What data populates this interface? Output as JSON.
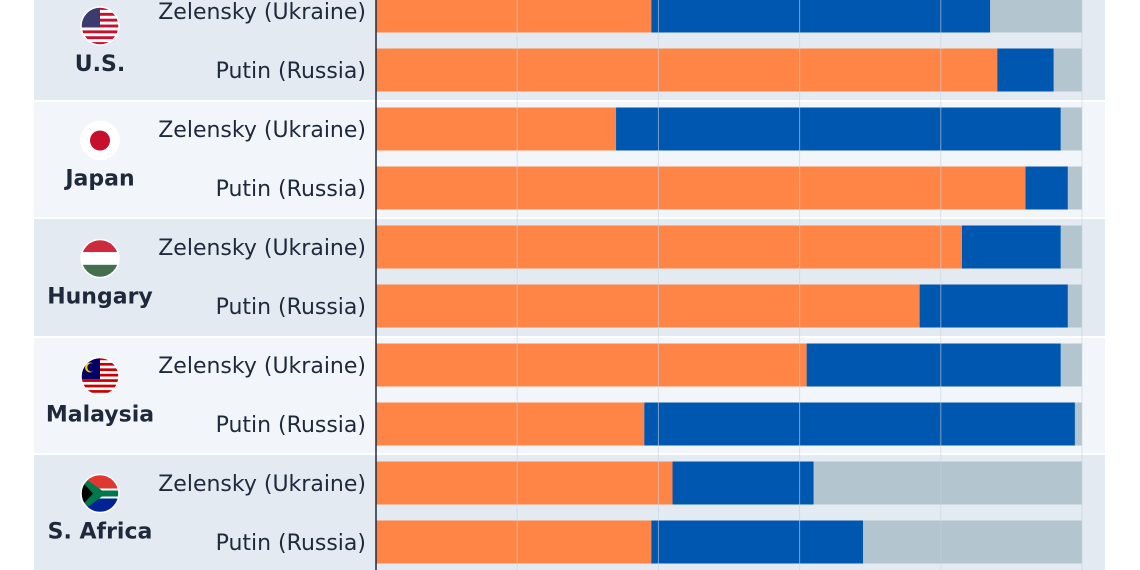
{
  "chart_data": {
    "type": "bar",
    "orientation": "horizontal",
    "stacked": true,
    "xlim": [
      0,
      100
    ],
    "grid": true,
    "gridlines": [
      20,
      40,
      60,
      80,
      100
    ],
    "series_colors": {
      "a": "#ff8547",
      "b": "#0057b0",
      "c": "#b3c5cf"
    },
    "groups": [
      {
        "country": "U.S.",
        "flag": "us-flag",
        "rows": [
          {
            "label": "Zelensky (Ukraine)",
            "values": [
              39,
              48,
              13
            ]
          },
          {
            "label": "Putin (Russia)",
            "values": [
              88,
              8,
              4
            ]
          }
        ]
      },
      {
        "country": "Japan",
        "flag": "japan-flag",
        "rows": [
          {
            "label": "Zelensky (Ukraine)",
            "values": [
              34,
              63,
              3
            ]
          },
          {
            "label": "Putin (Russia)",
            "values": [
              92,
              6,
              2
            ]
          }
        ]
      },
      {
        "country": "Hungary",
        "flag": "hungary-flag",
        "rows": [
          {
            "label": "Zelensky (Ukraine)",
            "values": [
              83,
              14,
              3
            ]
          },
          {
            "label": "Putin (Russia)",
            "values": [
              77,
              21,
              2
            ]
          }
        ]
      },
      {
        "country": "Malaysia",
        "flag": "malaysia-flag",
        "rows": [
          {
            "label": "Zelensky (Ukraine)",
            "values": [
              61,
              36,
              3
            ]
          },
          {
            "label": "Putin (Russia)",
            "values": [
              38,
              61,
              1
            ]
          }
        ]
      },
      {
        "country": "S. Africa",
        "flag": "south-africa-flag",
        "rows": [
          {
            "label": "Zelensky (Ukraine)",
            "values": [
              42,
              20,
              38
            ]
          },
          {
            "label": "Putin (Russia)",
            "values": [
              39,
              30,
              31
            ]
          }
        ]
      }
    ]
  }
}
